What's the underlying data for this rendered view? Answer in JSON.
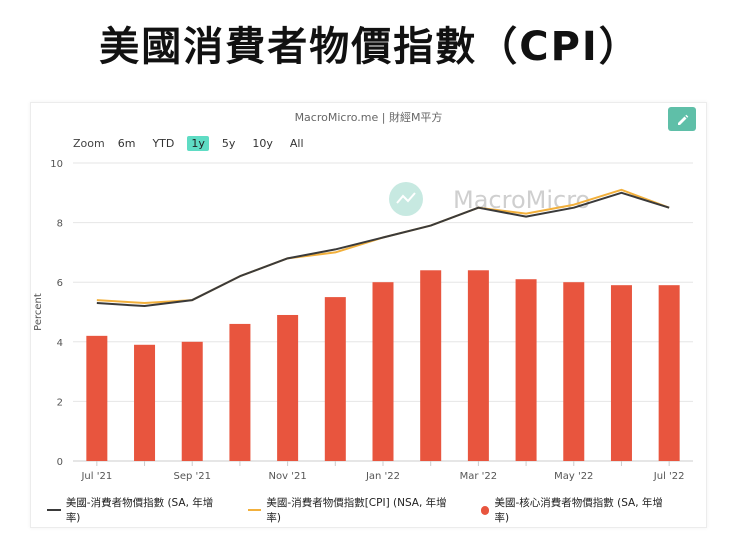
{
  "headline": "美國消費者物價指數（CPI）",
  "source": "MacroMicro.me | 財經M平方",
  "watermark": "MacroMicro",
  "edit_icon": "pencil-icon",
  "zoom": {
    "label": "Zoom",
    "options": [
      "6m",
      "YTD",
      "1y",
      "5y",
      "10y",
      "All"
    ],
    "active": "1y"
  },
  "colors": {
    "sa_line": "#3a3a3a",
    "nsa_line": "#f2b03c",
    "core_bar": "#e8553e",
    "accent": "#5fbfa8"
  },
  "chart_data": {
    "type": "bar",
    "ylabel": "Percent",
    "ylim": [
      0,
      10
    ],
    "yticks": [
      0,
      2,
      4,
      6,
      8,
      10
    ],
    "grid": true,
    "legend_position": "bottom",
    "categories": [
      "Jul '21",
      "Aug '21",
      "Sep '21",
      "Oct '21",
      "Nov '21",
      "Dec '21",
      "Jan '22",
      "Feb '22",
      "Mar '22",
      "Apr '22",
      "May '22",
      "Jun '22",
      "Jul '22"
    ],
    "x_tick_labels": [
      "Jul '21",
      "",
      "Sep '21",
      "",
      "Nov '21",
      "",
      "Jan '22",
      "",
      "Mar '22",
      "",
      "May '22",
      "",
      "Jul '22"
    ],
    "series": [
      {
        "name": "美國-消費者物價指數 (SA, 年增率)",
        "type": "line",
        "values": [
          5.3,
          5.2,
          5.4,
          6.2,
          6.8,
          7.1,
          7.5,
          7.9,
          8.5,
          8.2,
          8.5,
          9.0,
          8.5
        ]
      },
      {
        "name": "美國-消費者物價指數[CPI] (NSA, 年增率)",
        "type": "line",
        "values": [
          5.4,
          5.3,
          5.4,
          6.2,
          6.8,
          7.0,
          7.5,
          7.9,
          8.5,
          8.3,
          8.6,
          9.1,
          8.5
        ]
      },
      {
        "name": "美國-核心消費者物價指數 (SA, 年增率)",
        "type": "bar",
        "values": [
          4.2,
          3.9,
          4.0,
          4.6,
          4.9,
          5.5,
          6.0,
          6.4,
          6.4,
          6.1,
          6.0,
          5.9,
          5.9
        ]
      }
    ]
  }
}
